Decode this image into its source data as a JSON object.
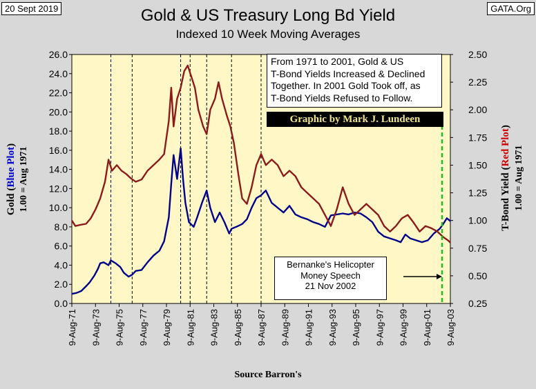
{
  "header": {
    "date": "20 Sept 2019",
    "site": "GATA.Org",
    "title": "Gold & US Treasury Long Bd Yield",
    "subtitle": "Indexed  10 Week Moving Averages"
  },
  "annotations": {
    "note_lines": [
      "From 1971 to 2001, Gold & US",
      "T-Bond Yields Increased & Declined",
      "Together.  In 2001 Gold Took off, as",
      "T-Bond Yields Refused to Follow."
    ],
    "credit": "Graphic by Mark J. Lundeen",
    "bernanke_lines": [
      "Bernanke's Helicopter",
      "Money Speech",
      "21 Nov 2002"
    ],
    "arrow": "→",
    "source": "Source Barron's"
  },
  "chart_data": {
    "type": "line",
    "title": "Gold & US Treasury Long Bd Yield",
    "subtitle": "Indexed  10 Week Moving Averages",
    "xlabel": "Source Barron's",
    "x_ticks": [
      "9-Aug-71",
      "9-Aug-73",
      "9-Aug-75",
      "9-Aug-77",
      "9-Aug-79",
      "9-Aug-81",
      "9-Aug-83",
      "9-Aug-85",
      "9-Aug-87",
      "9-Aug-89",
      "9-Aug-91",
      "9-Aug-93",
      "9-Aug-95",
      "9-Aug-97",
      "9-Aug-99",
      "9-Aug-01",
      "9-Aug-03"
    ],
    "xlim": [
      1971.6,
      2003.6
    ],
    "left_axis": {
      "label_parts": [
        "Gold (",
        "Blue Plot",
        ")"
      ],
      "label_sub": "1.00 = Aug 1971",
      "ylim": [
        0,
        26
      ],
      "ticks": [
        "0.0",
        "2.0",
        "4.0",
        "6.0",
        "8.0",
        "10.0",
        "12.0",
        "14.0",
        "16.0",
        "18.0",
        "20.0",
        "22.0",
        "24.0",
        "26.0"
      ]
    },
    "right_axis": {
      "label_parts": [
        "T-Bond Yield (",
        "Red Plot",
        ")"
      ],
      "label_sub": "1.00 = Aug 1971",
      "ylim": [
        0.25,
        2.5
      ],
      "ticks": [
        "0.25",
        "0.50",
        "0.75",
        "1.00",
        "1.25",
        "1.50",
        "1.75",
        "2.00",
        "2.25",
        "2.50"
      ]
    },
    "event_lines_x": [
      1974.9,
      1976.7,
      1980.8,
      1981.6,
      1983.0,
      1985.1,
      1987.6
    ],
    "bernanke_x": 2002.9,
    "series": [
      {
        "name": "Gold",
        "axis": "left",
        "color": "#00008b",
        "x": [
          1971.6,
          1972.0,
          1972.4,
          1972.8,
          1973.1,
          1973.5,
          1973.8,
          1974.0,
          1974.3,
          1974.7,
          1974.9,
          1975.3,
          1975.7,
          1976.0,
          1976.4,
          1976.7,
          1977.0,
          1977.5,
          1978.0,
          1978.5,
          1979.0,
          1979.4,
          1979.8,
          1980.0,
          1980.2,
          1980.5,
          1980.8,
          1981.0,
          1981.2,
          1981.5,
          1981.9,
          1982.2,
          1982.6,
          1983.0,
          1983.3,
          1983.7,
          1984.1,
          1984.5,
          1984.9,
          1985.1,
          1985.5,
          1986.0,
          1986.4,
          1986.8,
          1987.2,
          1987.6,
          1988.0,
          1988.5,
          1989.0,
          1989.5,
          1990.0,
          1990.5,
          1991.0,
          1991.5,
          1992.0,
          1992.5,
          1993.0,
          1993.5,
          1994.0,
          1994.5,
          1995.0,
          1995.5,
          1996.0,
          1996.5,
          1997.0,
          1997.5,
          1998.0,
          1998.5,
          1999.0,
          1999.4,
          1999.8,
          2000.2,
          2000.7,
          2001.2,
          2001.7,
          2002.2,
          2002.7,
          2003.0,
          2003.3,
          2003.6
        ],
        "values": [
          1.0,
          1.1,
          1.3,
          1.8,
          2.2,
          2.9,
          3.6,
          4.2,
          4.3,
          4.0,
          4.5,
          4.2,
          3.8,
          3.2,
          2.8,
          3.0,
          3.4,
          3.5,
          4.3,
          5.0,
          5.5,
          6.5,
          9.0,
          12.5,
          15.5,
          13.0,
          16.2,
          13.0,
          10.5,
          8.5,
          8.0,
          9.0,
          10.5,
          11.8,
          10.0,
          8.5,
          9.5,
          8.5,
          7.3,
          7.8,
          8.0,
          8.3,
          8.8,
          10.0,
          11.0,
          11.3,
          11.8,
          10.5,
          10.0,
          9.5,
          10.2,
          9.3,
          9.0,
          8.8,
          8.5,
          8.3,
          8.0,
          9.2,
          9.3,
          9.4,
          9.3,
          9.5,
          9.4,
          9.0,
          8.5,
          7.5,
          7.0,
          6.8,
          6.6,
          6.4,
          7.2,
          6.8,
          6.6,
          6.4,
          6.6,
          7.3,
          7.8,
          8.3,
          8.9,
          8.6
        ]
      },
      {
        "name": "T-Bond Yield",
        "axis": "right",
        "color": "#8b1a1a",
        "x": [
          1971.6,
          1971.9,
          1972.3,
          1972.8,
          1973.2,
          1973.6,
          1974.0,
          1974.4,
          1974.7,
          1975.0,
          1975.4,
          1975.8,
          1976.2,
          1976.6,
          1977.0,
          1977.5,
          1978.0,
          1978.5,
          1979.0,
          1979.4,
          1979.8,
          1980.0,
          1980.2,
          1980.5,
          1980.8,
          1981.1,
          1981.4,
          1981.7,
          1982.0,
          1982.3,
          1982.7,
          1983.0,
          1983.3,
          1983.7,
          1984.0,
          1984.3,
          1984.7,
          1985.0,
          1985.3,
          1985.7,
          1986.0,
          1986.4,
          1986.8,
          1987.2,
          1987.6,
          1988.0,
          1988.5,
          1989.0,
          1989.5,
          1990.0,
          1990.5,
          1991.0,
          1991.5,
          1992.0,
          1992.5,
          1993.0,
          1993.5,
          1994.0,
          1994.5,
          1995.0,
          1995.5,
          1996.0,
          1996.5,
          1997.0,
          1997.5,
          1998.0,
          1998.5,
          1999.0,
          1999.5,
          2000.0,
          2000.5,
          2001.0,
          2001.5,
          2002.0,
          2002.5,
          2003.0,
          2003.4,
          2003.6
        ],
        "values": [
          1.0,
          0.95,
          0.96,
          0.97,
          1.02,
          1.1,
          1.2,
          1.35,
          1.55,
          1.45,
          1.5,
          1.45,
          1.42,
          1.38,
          1.35,
          1.37,
          1.45,
          1.5,
          1.55,
          1.6,
          1.9,
          2.2,
          1.85,
          2.1,
          2.2,
          2.35,
          2.4,
          2.3,
          2.2,
          2.0,
          1.85,
          1.78,
          2.0,
          2.1,
          2.25,
          2.1,
          1.95,
          1.85,
          1.7,
          1.4,
          1.2,
          1.15,
          1.3,
          1.5,
          1.6,
          1.5,
          1.55,
          1.5,
          1.4,
          1.45,
          1.4,
          1.3,
          1.25,
          1.2,
          1.15,
          1.05,
          0.95,
          1.1,
          1.3,
          1.15,
          1.05,
          1.1,
          1.15,
          1.1,
          1.05,
          0.95,
          0.9,
          0.95,
          1.02,
          1.05,
          0.98,
          0.9,
          0.95,
          0.93,
          0.9,
          0.85,
          0.82,
          0.8
        ]
      }
    ],
    "colors": {
      "plot_bg": "#fff8c6",
      "page_bg": "#d8d8d8",
      "gold_line": "#00008b",
      "yield_line": "#8b1a1a",
      "bernanke_line": "#22bb22",
      "left_label_highlight": "#0000cc",
      "right_label_highlight": "#cc0000"
    }
  }
}
